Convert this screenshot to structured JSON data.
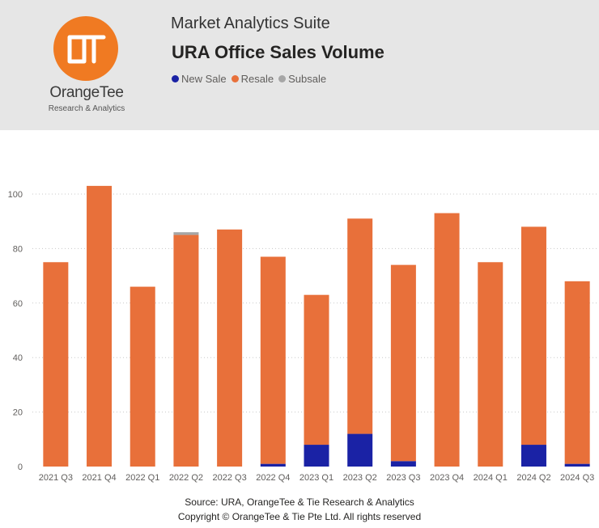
{
  "header": {
    "suite": "Market Analytics Suite",
    "title": "URA Office Sales Volume",
    "brand_name": "OrangeTee",
    "brand_sub": "Research & Analytics",
    "brand_color": "#f07a22"
  },
  "chart_data": {
    "type": "bar",
    "stacked": true,
    "title": "URA Office Sales Volume",
    "categories": [
      "2021 Q3",
      "2021 Q4",
      "2022 Q1",
      "2022 Q2",
      "2022 Q3",
      "2022 Q4",
      "2023 Q1",
      "2023 Q2",
      "2023 Q3",
      "2023 Q4",
      "2024 Q1",
      "2024 Q2",
      "2024 Q3"
    ],
    "series": [
      {
        "name": "New Sale",
        "color": "#1a22a5",
        "values": [
          0,
          0,
          0,
          0,
          0,
          1,
          8,
          12,
          2,
          0,
          0,
          8,
          1
        ]
      },
      {
        "name": "Resale",
        "color": "#e8703a",
        "values": [
          75,
          103,
          66,
          85,
          87,
          76,
          55,
          79,
          72,
          93,
          75,
          80,
          67
        ]
      },
      {
        "name": "Subsale",
        "color": "#a6a6a6",
        "values": [
          0,
          0,
          0,
          1,
          0,
          0,
          0,
          0,
          0,
          0,
          0,
          0,
          0
        ]
      }
    ],
    "ylim": [
      0,
      106
    ],
    "yticks": [
      0,
      20,
      40,
      60,
      80,
      100
    ],
    "grid": true,
    "legend": "top-left"
  },
  "footer": {
    "source": "Source: URA, OrangeTee & Tie Research & Analytics",
    "copyright": "Copyright © OrangeTee & Tie Pte Ltd. All rights reserved"
  }
}
